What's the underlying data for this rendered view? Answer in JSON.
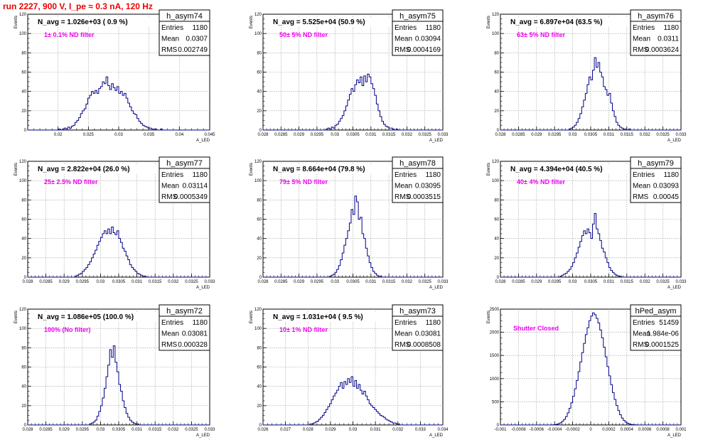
{
  "run_title": "run 2227,   900 V, I_pe ≈ 0.3 nA, 120 Hz",
  "chart_data": [
    {
      "type": "histogram",
      "name": "h_asym74",
      "navg": "N_avg = 1.026e+03 ( 0.9 %)",
      "filter": "1± 0.1% ND filter",
      "stats": [
        [
          "Entries",
          "1180"
        ],
        [
          "Mean",
          "0.0307"
        ],
        [
          "RMS",
          "0.002749"
        ]
      ],
      "xlabel": "A_LED",
      "ylabel": "Events",
      "xlim": [
        0.015,
        0.045
      ],
      "ylim": [
        0,
        120
      ],
      "xticks": [
        "0.02",
        "0.025",
        "0.03",
        "0.035",
        "0.04",
        "0.045"
      ],
      "yticks": [
        "0",
        "20",
        "40",
        "60",
        "80",
        "100",
        "120"
      ],
      "bins": 100,
      "x_start": 0.015,
      "x_end": 0.045,
      "counts": [
        0,
        0,
        0,
        0,
        0,
        0,
        0,
        0,
        0,
        0,
        0,
        0,
        0,
        0,
        0,
        0,
        0,
        1,
        0,
        1,
        2,
        1,
        3,
        2,
        4,
        5,
        8,
        10,
        13,
        17,
        20,
        22,
        27,
        33,
        36,
        40,
        38,
        41,
        38,
        43,
        45,
        50,
        48,
        55,
        46,
        42,
        48,
        44,
        41,
        45,
        38,
        40,
        36,
        38,
        33,
        28,
        24,
        20,
        17,
        16,
        12,
        9,
        7,
        5,
        4,
        3,
        2,
        2,
        1,
        1,
        1,
        0,
        0,
        1,
        0,
        0,
        0,
        0,
        0,
        0,
        0,
        0,
        0,
        0,
        0,
        0,
        0,
        0,
        0,
        0,
        0,
        0,
        0,
        0,
        0,
        0,
        0,
        0,
        0,
        0
      ]
    },
    {
      "type": "histogram",
      "name": "h_asym75",
      "navg": "N_avg = 5.525e+04 (50.9 %)",
      "filter": "50± 5% ND filter",
      "stats": [
        [
          "Entries",
          "1180"
        ],
        [
          "Mean",
          "0.03094"
        ],
        [
          "RMS",
          "0.0004169"
        ]
      ],
      "xlabel": "A_LED",
      "ylabel": "Events",
      "xlim": [
        0.028,
        0.033
      ],
      "ylim": [
        0,
        120
      ],
      "xticks": [
        "0.028",
        "0.0285",
        "0.029",
        "0.0295",
        "0.03",
        "0.0305",
        "0.031",
        "0.0315",
        "0.032",
        "0.0325",
        "0.033"
      ],
      "yticks": [
        "0",
        "20",
        "40",
        "60",
        "80",
        "100",
        "120"
      ],
      "bins": 100,
      "x_start": 0.028,
      "x_end": 0.033,
      "counts": [
        0,
        0,
        0,
        0,
        0,
        0,
        0,
        0,
        0,
        0,
        0,
        0,
        0,
        0,
        0,
        0,
        0,
        0,
        0,
        0,
        0,
        0,
        0,
        0,
        0,
        0,
        0,
        0,
        0,
        0,
        0,
        0,
        0,
        0,
        0,
        1,
        2,
        1,
        3,
        2,
        5,
        6,
        9,
        12,
        15,
        20,
        25,
        31,
        37,
        43,
        40,
        47,
        52,
        49,
        55,
        46,
        56,
        50,
        58,
        55,
        48,
        43,
        36,
        27,
        20,
        14,
        9,
        6,
        4,
        3,
        2,
        2,
        1,
        0,
        1,
        0,
        0,
        0,
        0,
        0,
        0,
        0,
        0,
        0,
        0,
        0,
        0,
        0,
        0,
        0,
        0,
        0,
        0,
        0,
        0,
        0,
        0,
        0,
        0,
        0
      ]
    },
    {
      "type": "histogram",
      "name": "h_asym76",
      "navg": "N_avg = 6.897e+04 (63.5 %)",
      "filter": "63± 5% ND filter",
      "stats": [
        [
          "Entries",
          "1180"
        ],
        [
          "Mean",
          "0.0311"
        ],
        [
          "RMS",
          "0.0003624"
        ]
      ],
      "xlabel": "A_LED",
      "ylabel": "Events",
      "xlim": [
        0.028,
        0.033
      ],
      "ylim": [
        0,
        120
      ],
      "xticks": [
        "0.028",
        "0.0285",
        "0.029",
        "0.0295",
        "0.03",
        "0.0305",
        "0.031",
        "0.0315",
        "0.032",
        "0.0325",
        "0.033"
      ],
      "yticks": [
        "0",
        "20",
        "40",
        "60",
        "80",
        "100",
        "120"
      ],
      "bins": 100,
      "x_start": 0.028,
      "x_end": 0.033,
      "counts": [
        0,
        0,
        0,
        0,
        0,
        0,
        0,
        0,
        0,
        0,
        0,
        0,
        0,
        0,
        0,
        0,
        0,
        0,
        0,
        0,
        0,
        0,
        0,
        0,
        0,
        0,
        0,
        0,
        0,
        0,
        0,
        0,
        0,
        0,
        0,
        0,
        0,
        0,
        1,
        2,
        3,
        5,
        8,
        12,
        17,
        24,
        31,
        38,
        47,
        55,
        52,
        62,
        75,
        65,
        70,
        60,
        55,
        45,
        42,
        36,
        38,
        28,
        20,
        14,
        8,
        5,
        3,
        2,
        1,
        1,
        0,
        1,
        0,
        0,
        0,
        0,
        0,
        0,
        0,
        0,
        0,
        0,
        0,
        0,
        0,
        0,
        0,
        0,
        0,
        0,
        0,
        0,
        0,
        0,
        0,
        0,
        0,
        0,
        0,
        0
      ]
    },
    {
      "type": "histogram",
      "name": "h_asym77",
      "navg": "N_avg = 2.822e+04 (26.0 %)",
      "filter": "25± 2.5% ND filter",
      "stats": [
        [
          "Entries",
          "1180"
        ],
        [
          "Mean",
          "0.03114"
        ],
        [
          "RMS",
          "0.0005349"
        ]
      ],
      "xlabel": "A_LED",
      "ylabel": "Events",
      "xlim": [
        0.028,
        0.033
      ],
      "ylim": [
        0,
        120
      ],
      "xticks": [
        "0.028",
        "0.0285",
        "0.029",
        "0.0295",
        "0.03",
        "0.0305",
        "0.031",
        "0.0315",
        "0.032",
        "0.0325",
        "0.033"
      ],
      "yticks": [
        "0",
        "20",
        "40",
        "60",
        "80",
        "100",
        "120"
      ],
      "bins": 100,
      "x_start": 0.028,
      "x_end": 0.033,
      "counts": [
        0,
        0,
        0,
        0,
        0,
        0,
        0,
        0,
        0,
        0,
        0,
        0,
        0,
        0,
        0,
        0,
        0,
        0,
        0,
        0,
        0,
        0,
        0,
        0,
        0,
        0,
        1,
        2,
        3,
        4,
        6,
        8,
        10,
        13,
        16,
        20,
        24,
        28,
        33,
        37,
        41,
        45,
        48,
        45,
        50,
        45,
        52,
        46,
        44,
        48,
        40,
        36,
        30,
        27,
        22,
        18,
        13,
        10,
        8,
        6,
        4,
        3,
        2,
        1,
        1,
        0,
        0,
        0,
        0,
        0,
        0,
        0,
        0,
        0,
        0,
        0,
        0,
        0,
        0,
        0,
        0,
        0,
        0,
        0,
        0,
        0,
        0,
        0,
        0,
        0,
        0,
        0,
        0,
        0,
        0,
        0,
        0,
        0,
        0,
        0
      ]
    },
    {
      "type": "histogram",
      "name": "h_asym78",
      "navg": "N_avg = 8.664e+04 (79.8 %)",
      "filter": "79± 5% ND filter",
      "stats": [
        [
          "Entries",
          "1180"
        ],
        [
          "Mean",
          "0.03095"
        ],
        [
          "RMS",
          "0.0003515"
        ]
      ],
      "xlabel": "A_LED",
      "ylabel": "Events",
      "xlim": [
        0.028,
        0.033
      ],
      "ylim": [
        0,
        120
      ],
      "xticks": [
        "0.028",
        "0.0285",
        "0.029",
        "0.0295",
        "0.03",
        "0.0305",
        "0.031",
        "0.0315",
        "0.032",
        "0.0325",
        "0.033"
      ],
      "yticks": [
        "0",
        "20",
        "40",
        "60",
        "80",
        "100",
        "120"
      ],
      "bins": 100,
      "x_start": 0.028,
      "x_end": 0.033,
      "counts": [
        0,
        0,
        0,
        0,
        0,
        0,
        0,
        0,
        0,
        0,
        0,
        0,
        0,
        0,
        0,
        0,
        0,
        0,
        0,
        0,
        0,
        0,
        0,
        0,
        0,
        0,
        0,
        0,
        0,
        0,
        0,
        0,
        0,
        0,
        0,
        0,
        0,
        1,
        2,
        3,
        5,
        8,
        12,
        18,
        25,
        33,
        40,
        48,
        56,
        70,
        65,
        84,
        78,
        60,
        62,
        45,
        40,
        30,
        22,
        15,
        10,
        6,
        4,
        2,
        1,
        1,
        0,
        0,
        0,
        0,
        0,
        0,
        0,
        0,
        0,
        0,
        0,
        0,
        0,
        0,
        0,
        0,
        0,
        0,
        0,
        0,
        0,
        0,
        0,
        0,
        0,
        0,
        0,
        0,
        0,
        0,
        0,
        0,
        0,
        0
      ]
    },
    {
      "type": "histogram",
      "name": "h_asym79",
      "navg": "N_avg = 4.394e+04 (40.5 %)",
      "filter": "40± 4% ND filter",
      "stats": [
        [
          "Entries",
          "1180"
        ],
        [
          "Mean",
          "0.03093"
        ],
        [
          "RMS",
          "0.00045"
        ]
      ],
      "xlabel": "A_LED",
      "ylabel": "Events",
      "xlim": [
        0.028,
        0.033
      ],
      "ylim": [
        0,
        120
      ],
      "xticks": [
        "0.028",
        "0.0285",
        "0.029",
        "0.0295",
        "0.03",
        "0.0305",
        "0.031",
        "0.0315",
        "0.032",
        "0.0325",
        "0.033"
      ],
      "yticks": [
        "0",
        "20",
        "40",
        "60",
        "80",
        "100",
        "120"
      ],
      "bins": 100,
      "x_start": 0.028,
      "x_end": 0.033,
      "counts": [
        0,
        0,
        0,
        0,
        0,
        0,
        0,
        0,
        0,
        0,
        0,
        0,
        0,
        0,
        0,
        0,
        0,
        0,
        0,
        0,
        0,
        0,
        0,
        0,
        0,
        0,
        0,
        0,
        0,
        0,
        0,
        0,
        0,
        1,
        2,
        3,
        4,
        6,
        8,
        11,
        15,
        20,
        25,
        31,
        37,
        43,
        48,
        45,
        50,
        46,
        40,
        55,
        66,
        50,
        45,
        38,
        30,
        26,
        20,
        15,
        10,
        7,
        5,
        3,
        2,
        1,
        1,
        0,
        0,
        0,
        0,
        0,
        0,
        0,
        0,
        0,
        0,
        0,
        0,
        0,
        0,
        0,
        0,
        0,
        0,
        0,
        0,
        0,
        0,
        0,
        0,
        0,
        0,
        0,
        0,
        0,
        0,
        0,
        0,
        0
      ]
    },
    {
      "type": "histogram",
      "name": "h_asym72",
      "navg": "N_avg = 1.086e+05 (100.0 %)",
      "filter": "100% (No filter)",
      "stats": [
        [
          "Entries",
          "1180"
        ],
        [
          "Mean",
          "0.03081"
        ],
        [
          "RMS",
          "0.000328"
        ]
      ],
      "xlabel": "A_LED",
      "ylabel": "Events",
      "xlim": [
        0.028,
        0.033
      ],
      "ylim": [
        0,
        120
      ],
      "xticks": [
        "0.028",
        "0.0285",
        "0.029",
        "0.0295",
        "0.03",
        "0.0305",
        "0.031",
        "0.0315",
        "0.032",
        "0.0325",
        "0.033"
      ],
      "yticks": [
        "0",
        "20",
        "40",
        "60",
        "80",
        "100",
        "120"
      ],
      "bins": 100,
      "x_start": 0.028,
      "x_end": 0.033,
      "counts": [
        0,
        0,
        0,
        0,
        0,
        0,
        0,
        0,
        0,
        0,
        0,
        0,
        0,
        0,
        0,
        0,
        0,
        0,
        0,
        0,
        0,
        0,
        0,
        0,
        0,
        0,
        0,
        0,
        0,
        0,
        0,
        0,
        0,
        0,
        1,
        2,
        3,
        5,
        9,
        14,
        20,
        28,
        38,
        50,
        62,
        78,
        70,
        82,
        65,
        55,
        42,
        35,
        25,
        18,
        12,
        8,
        5,
        3,
        2,
        1,
        1,
        0,
        0,
        0,
        0,
        0,
        0,
        0,
        0,
        0,
        0,
        0,
        0,
        0,
        0,
        0,
        0,
        0,
        0,
        0,
        0,
        0,
        0,
        0,
        0,
        0,
        0,
        0,
        0,
        0,
        0,
        0,
        0,
        0,
        0,
        0,
        0,
        0,
        0,
        0
      ]
    },
    {
      "type": "histogram",
      "name": "h_asym73",
      "navg": "N_avg = 1.031e+04 ( 9.5 %)",
      "filter": "10± 1% ND filter",
      "stats": [
        [
          "Entries",
          "1180"
        ],
        [
          "Mean",
          "0.03081"
        ],
        [
          "RMS",
          "0.0008508"
        ]
      ],
      "xlabel": "A_LED",
      "ylabel": "Events",
      "xlim": [
        0.026,
        0.034
      ],
      "ylim": [
        0,
        120
      ],
      "xticks": [
        "0.026",
        "0.027",
        "0.028",
        "0.029",
        "0.03",
        "0.031",
        "0.032",
        "0.033",
        "0.034"
      ],
      "yticks": [
        "0",
        "20",
        "40",
        "60",
        "80",
        "100",
        "120"
      ],
      "bins": 100,
      "x_start": 0.026,
      "x_end": 0.034,
      "counts": [
        0,
        0,
        0,
        0,
        0,
        0,
        0,
        0,
        0,
        0,
        0,
        0,
        0,
        0,
        0,
        0,
        0,
        0,
        0,
        0,
        0,
        0,
        0,
        0,
        0,
        0,
        1,
        1,
        2,
        3,
        4,
        6,
        8,
        10,
        13,
        16,
        19,
        22,
        26,
        30,
        33,
        36,
        40,
        44,
        38,
        45,
        42,
        48,
        44,
        50,
        40,
        46,
        38,
        42,
        36,
        32,
        35,
        30,
        26,
        22,
        20,
        18,
        16,
        14,
        12,
        10,
        9,
        8,
        6,
        5,
        4,
        3,
        2,
        2,
        1,
        1,
        0,
        0,
        0,
        0,
        0,
        0,
        0,
        0,
        0,
        0,
        0,
        0,
        0,
        0,
        0,
        0,
        0,
        0,
        0,
        0,
        0,
        0,
        0,
        0
      ]
    },
    {
      "type": "histogram",
      "name": "hPed_asym",
      "navg": "",
      "filter": "Shutter Closed",
      "stats": [
        [
          "Entries",
          "51459"
        ],
        [
          "Mean",
          "1.984e-06"
        ],
        [
          "RMS",
          "0.0001525"
        ]
      ],
      "xlabel": "A_LED",
      "ylabel": "Events",
      "xlim": [
        -0.001,
        0.001
      ],
      "ylim": [
        0,
        2500
      ],
      "xticks": [
        "-0.001",
        "-0.0008",
        "-0.0006",
        "-0.0004",
        "-0.0002",
        "0",
        "0.0002",
        "0.0004",
        "0.0006",
        "0.0008",
        "0.001"
      ],
      "yticks": [
        "0",
        "500",
        "1000",
        "1500",
        "2000",
        "2500"
      ],
      "bins": 100,
      "x_start": -0.001,
      "x_end": 0.001,
      "counts": [
        0,
        0,
        0,
        0,
        0,
        0,
        0,
        0,
        0,
        0,
        0,
        0,
        0,
        0,
        0,
        0,
        0,
        0,
        0,
        0,
        0,
        0,
        0,
        0,
        0,
        0,
        0,
        0,
        2,
        4,
        8,
        15,
        28,
        48,
        80,
        120,
        180,
        260,
        360,
        480,
        620,
        780,
        960,
        1150,
        1360,
        1560,
        1760,
        1950,
        2100,
        2250,
        2350,
        2420,
        2380,
        2300,
        2200,
        2050,
        1880,
        1680,
        1470,
        1260,
        1060,
        870,
        700,
        550,
        420,
        310,
        220,
        150,
        100,
        62,
        38,
        22,
        12,
        6,
        3,
        1,
        0,
        0,
        0,
        0,
        0,
        0,
        0,
        0,
        0,
        0,
        0,
        0,
        0,
        0,
        0,
        0,
        0,
        0,
        0,
        0,
        0,
        0,
        0,
        0
      ]
    }
  ]
}
